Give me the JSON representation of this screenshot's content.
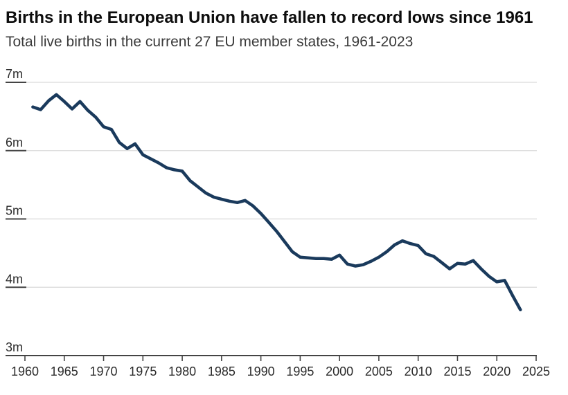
{
  "header": {
    "title": "Births in the European Union have fallen to record lows since 1961",
    "subtitle": "Total live births in the current 27 EU member states, 1961-2023"
  },
  "colors": {
    "line": "#1a3a5c",
    "gridline": "#d9d9d9",
    "axis": "#444444",
    "tick_label": "#2b2b2b",
    "title_text": "#0d0d0d",
    "subtitle_text": "#3a3a3a",
    "background": "#ffffff"
  },
  "chart_data": {
    "type": "line",
    "title": "Births in the European Union have fallen to record lows since 1961",
    "subtitle": "Total live births in the current 27 EU member states, 1961-2023",
    "unit": "millions of live births",
    "xlabel": "",
    "ylabel": "",
    "xlim": [
      1960,
      2025
    ],
    "ylim": [
      3,
      7
    ],
    "x_ticks": [
      1960,
      1965,
      1970,
      1975,
      1980,
      1985,
      1990,
      1995,
      2000,
      2005,
      2010,
      2015,
      2020,
      2025
    ],
    "y_ticks": [
      {
        "value": 3,
        "label": "3m"
      },
      {
        "value": 4,
        "label": "4m"
      },
      {
        "value": 5,
        "label": "5m"
      },
      {
        "value": 6,
        "label": "6m"
      },
      {
        "value": 7,
        "label": "7m"
      }
    ],
    "grid": "horizontal",
    "legend": "none",
    "x": [
      1961,
      1962,
      1963,
      1964,
      1965,
      1966,
      1967,
      1968,
      1969,
      1970,
      1971,
      1972,
      1973,
      1974,
      1975,
      1976,
      1977,
      1978,
      1979,
      1980,
      1981,
      1982,
      1983,
      1984,
      1985,
      1986,
      1987,
      1988,
      1989,
      1990,
      1991,
      1992,
      1993,
      1994,
      1995,
      1996,
      1997,
      1998,
      1999,
      2000,
      2001,
      2002,
      2003,
      2004,
      2005,
      2006,
      2007,
      2008,
      2009,
      2010,
      2011,
      2012,
      2013,
      2014,
      2015,
      2016,
      2017,
      2018,
      2019,
      2020,
      2021,
      2022,
      2023
    ],
    "series": [
      {
        "name": "Total live births in the current 27 EU member states",
        "values": [
          6.64,
          6.6,
          6.73,
          6.82,
          6.72,
          6.61,
          6.72,
          6.59,
          6.49,
          6.35,
          6.31,
          6.12,
          6.03,
          6.1,
          5.94,
          5.88,
          5.82,
          5.75,
          5.72,
          5.7,
          5.56,
          5.47,
          5.38,
          5.32,
          5.29,
          5.26,
          5.24,
          5.27,
          5.19,
          5.08,
          4.95,
          4.82,
          4.67,
          4.52,
          4.44,
          4.43,
          4.42,
          4.42,
          4.41,
          4.47,
          4.34,
          4.31,
          4.33,
          4.38,
          4.44,
          4.52,
          4.62,
          4.68,
          4.64,
          4.61,
          4.49,
          4.45,
          4.36,
          4.27,
          4.35,
          4.34,
          4.39,
          4.27,
          4.16,
          4.08,
          4.1,
          3.88,
          3.67
        ]
      }
    ]
  }
}
